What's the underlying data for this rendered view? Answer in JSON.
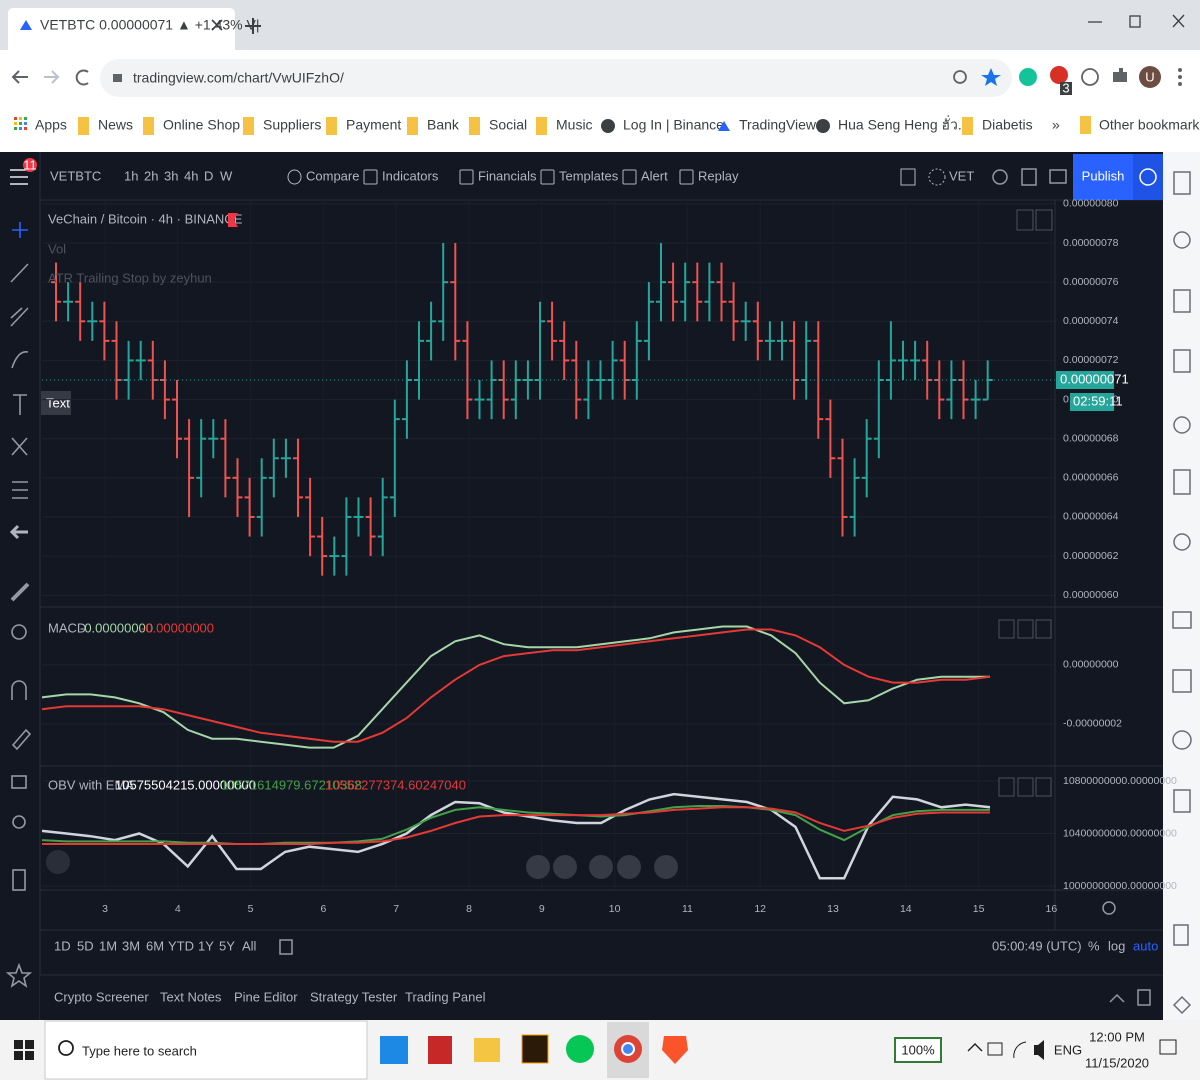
{
  "browser": {
    "tab_title": "VETBTC 0.00000071 ▲ +1.43% V|",
    "url": "tradingview.com/chart/VwUIFzhO/",
    "extension_badge": "3",
    "profile": "U",
    "bookmarks": [
      "Apps",
      "News",
      "Online Shop",
      "Suppliers",
      "Payment",
      "Bank",
      "Social",
      "Music",
      "Log In | Binance",
      "TradingView",
      "Hua Seng Heng ฮั่ว...",
      "Diabetis"
    ],
    "more": "»",
    "other_bookmarks": "Other bookmarks"
  },
  "toolbar": {
    "notifications": "11",
    "symbol": "VETBTC",
    "intervals": [
      "1h",
      "2h",
      "3h",
      "4h",
      "D",
      "W"
    ],
    "buttons": [
      "Compare",
      "Indicators",
      "Financials",
      "Templates",
      "Alert",
      "Replay"
    ],
    "currency": "VET",
    "publish": "Publish"
  },
  "chart": {
    "title": "VeChain / Bitcoin · 4h · BINANCE",
    "indicators": [
      "Vol",
      "ATR Trailing Stop by zeyhun"
    ],
    "tooltip": "Text",
    "last_price_label": "0.00000071",
    "countdown": "02:59:11",
    "ylim": [
      5.95e-07,
      8.02e-07
    ],
    "yticks": [
      {
        "value": 6e-07,
        "label": "0.00000060"
      },
      {
        "value": 6.2e-07,
        "label": "0.00000062"
      },
      {
        "value": 6.4e-07,
        "label": "0.00000064"
      },
      {
        "value": 6.6e-07,
        "label": "0.00000066"
      },
      {
        "value": 6.8e-07,
        "label": "0.00000068"
      },
      {
        "value": 7e-07,
        "label": "0.00000070"
      },
      {
        "value": 7.2e-07,
        "label": "0.00000072"
      },
      {
        "value": 7.4e-07,
        "label": "0.00000074"
      },
      {
        "value": 7.6e-07,
        "label": "0.00000076"
      },
      {
        "value": 7.8e-07,
        "label": "0.00000078"
      },
      {
        "value": 8e-07,
        "label": "0.00000080"
      }
    ],
    "up_color": "#26a69a",
    "down_color": "#ef5350",
    "open": [
      7.6e-07,
      7.5e-07,
      7.5e-07,
      7.4e-07,
      7.4e-07,
      7.3e-07,
      7.1e-07,
      7.2e-07,
      7.2e-07,
      7.1e-07,
      7e-07,
      6.8e-07,
      6.6e-07,
      6.8e-07,
      6.8e-07,
      6.6e-07,
      6.5e-07,
      6.4e-07,
      6.6e-07,
      6.7e-07,
      6.7e-07,
      6.5e-07,
      6.3e-07,
      6.2e-07,
      6.2e-07,
      6.4e-07,
      6.4e-07,
      6.3e-07,
      6.5e-07,
      6.9e-07,
      7.1e-07,
      7.3e-07,
      7.4e-07,
      7.6e-07,
      7.3e-07,
      7e-07,
      7e-07,
      7.1e-07,
      7e-07,
      7.1e-07,
      7.1e-07,
      7.4e-07,
      7.3e-07,
      7.2e-07,
      7e-07,
      7.1e-07,
      7.1e-07,
      7.2e-07,
      7.1e-07,
      7.3e-07,
      7.5e-07,
      7.6e-07,
      7.5e-07,
      7.6e-07,
      7.5e-07,
      7.6e-07,
      7.5e-07,
      7.4e-07,
      7.4e-07,
      7.3e-07,
      7.3e-07,
      7.3e-07,
      7.1e-07,
      7.3e-07,
      6.9e-07,
      6.7e-07,
      6.4e-07,
      6.6e-07,
      6.8e-07,
      7.1e-07,
      7.2e-07,
      7.2e-07,
      7.2e-07,
      7.1e-07,
      7e-07,
      7.1e-07,
      7e-07,
      7e-07
    ],
    "high": [
      7.7e-07,
      7.6e-07,
      7.6e-07,
      7.5e-07,
      7.5e-07,
      7.4e-07,
      7.3e-07,
      7.3e-07,
      7.3e-07,
      7.2e-07,
      7.1e-07,
      6.9e-07,
      6.9e-07,
      6.9e-07,
      6.9e-07,
      6.7e-07,
      6.6e-07,
      6.7e-07,
      6.8e-07,
      6.8e-07,
      6.8e-07,
      6.6e-07,
      6.4e-07,
      6.3e-07,
      6.5e-07,
      6.5e-07,
      6.5e-07,
      6.6e-07,
      7e-07,
      7.2e-07,
      7.4e-07,
      7.5e-07,
      7.8e-07,
      7.8e-07,
      7.4e-07,
      7.1e-07,
      7.2e-07,
      7.2e-07,
      7.2e-07,
      7.2e-07,
      7.5e-07,
      7.5e-07,
      7.4e-07,
      7.3e-07,
      7.2e-07,
      7.2e-07,
      7.3e-07,
      7.3e-07,
      7.4e-07,
      7.6e-07,
      7.8e-07,
      7.7e-07,
      7.7e-07,
      7.7e-07,
      7.7e-07,
      7.7e-07,
      7.6e-07,
      7.5e-07,
      7.5e-07,
      7.4e-07,
      7.4e-07,
      7.4e-07,
      7.4e-07,
      7.4e-07,
      7e-07,
      6.8e-07,
      6.7e-07,
      6.9e-07,
      7.2e-07,
      7.4e-07,
      7.3e-07,
      7.3e-07,
      7.3e-07,
      7.2e-07,
      7.2e-07,
      7.2e-07,
      7.1e-07,
      7.2e-07
    ],
    "low": [
      7.4e-07,
      7.4e-07,
      7.3e-07,
      7.3e-07,
      7.2e-07,
      7e-07,
      7e-07,
      7.1e-07,
      7e-07,
      6.9e-07,
      6.7e-07,
      6.4e-07,
      6.5e-07,
      6.7e-07,
      6.5e-07,
      6.4e-07,
      6.3e-07,
      6.3e-07,
      6.5e-07,
      6.6e-07,
      6.4e-07,
      6.2e-07,
      6.1e-07,
      6.1e-07,
      6.1e-07,
      6.3e-07,
      6.2e-07,
      6.2e-07,
      6.4e-07,
      6.8e-07,
      7e-07,
      7.2e-07,
      7.3e-07,
      7.2e-07,
      6.9e-07,
      6.9e-07,
      6.9e-07,
      6.9e-07,
      6.9e-07,
      7e-07,
      7e-07,
      7.2e-07,
      7.1e-07,
      6.9e-07,
      6.9e-07,
      7e-07,
      7e-07,
      7e-07,
      7e-07,
      7.2e-07,
      7.4e-07,
      7.4e-07,
      7.4e-07,
      7.4e-07,
      7.4e-07,
      7.4e-07,
      7.3e-07,
      7.3e-07,
      7.2e-07,
      7.2e-07,
      7.2e-07,
      7e-07,
      7e-07,
      6.8e-07,
      6.6e-07,
      6.3e-07,
      6.3e-07,
      6.5e-07,
      6.7e-07,
      7e-07,
      7.1e-07,
      7.1e-07,
      7e-07,
      6.9e-07,
      6.9e-07,
      6.9e-07,
      6.9e-07,
      7e-07
    ],
    "close": [
      7.5e-07,
      7.5e-07,
      7.4e-07,
      7.4e-07,
      7.3e-07,
      7.1e-07,
      7.2e-07,
      7.2e-07,
      7.1e-07,
      7e-07,
      6.8e-07,
      6.6e-07,
      6.8e-07,
      6.8e-07,
      6.6e-07,
      6.5e-07,
      6.4e-07,
      6.6e-07,
      6.7e-07,
      6.7e-07,
      6.5e-07,
      6.3e-07,
      6.2e-07,
      6.2e-07,
      6.4e-07,
      6.4e-07,
      6.3e-07,
      6.5e-07,
      6.9e-07,
      7.1e-07,
      7.3e-07,
      7.4e-07,
      7.6e-07,
      7.3e-07,
      7e-07,
      7e-07,
      7.1e-07,
      7e-07,
      7.1e-07,
      7.1e-07,
      7.4e-07,
      7.3e-07,
      7.2e-07,
      7e-07,
      7.1e-07,
      7.1e-07,
      7.2e-07,
      7.1e-07,
      7.3e-07,
      7.5e-07,
      7.6e-07,
      7.5e-07,
      7.6e-07,
      7.5e-07,
      7.6e-07,
      7.5e-07,
      7.4e-07,
      7.4e-07,
      7.3e-07,
      7.3e-07,
      7.3e-07,
      7.1e-07,
      7.3e-07,
      6.9e-07,
      6.7e-07,
      6.4e-07,
      6.6e-07,
      6.8e-07,
      7.1e-07,
      7.2e-07,
      7.2e-07,
      7.2e-07,
      7.1e-07,
      7e-07,
      7.1e-07,
      7e-07,
      7e-07,
      7.1e-07
    ],
    "macd": {
      "name": "MACD",
      "value_labels": [
        "-0.00000000",
        "-0.00000000"
      ],
      "ylim": [
        -3.39e-08,
        1.86e-08
      ],
      "yticks": [
        {
          "value": 0,
          "label": "0.00000000"
        },
        {
          "value": -2e-08,
          "label": "-0.00000002"
        }
      ],
      "series": [
        {
          "color": "#a5d6a7",
          "values": [
            -1.1e-08,
            -1e-08,
            -1e-08,
            -1.1e-08,
            -1.3e-08,
            -1.6e-08,
            -2.2e-08,
            -2.5e-08,
            -2.5e-08,
            -2.6e-08,
            -2.7e-08,
            -2.8e-08,
            -2.8e-08,
            -2.4e-08,
            -1.5e-08,
            -6e-09,
            3e-09,
            8e-09,
            1e-08,
            7e-09,
            6e-09,
            6e-09,
            6e-09,
            7e-09,
            8e-09,
            9e-09,
            1.1e-08,
            1.2e-08,
            1.3e-08,
            1.3e-08,
            1e-08,
            4e-09,
            -6e-09,
            -1.3e-08,
            -1.2e-08,
            -8e-09,
            -5e-09,
            -4e-09,
            -4e-09,
            -4e-09
          ]
        },
        {
          "color": "#e53935",
          "values": [
            -1.5e-08,
            -1.4e-08,
            -1.4e-08,
            -1.4e-08,
            -1.4e-08,
            -1.5e-08,
            -1.7e-08,
            -1.9e-08,
            -2.1e-08,
            -2.3e-08,
            -2.4e-08,
            -2.5e-08,
            -2.6e-08,
            -2.6e-08,
            -2.3e-08,
            -1.8e-08,
            -1.1e-08,
            -5e-09,
            0,
            3e-09,
            4e-09,
            5e-09,
            5e-09,
            6e-09,
            7e-09,
            8e-09,
            9e-09,
            1e-08,
            1.1e-08,
            1.2e-08,
            1.2e-08,
            1e-08,
            6e-09,
            0,
            -4e-09,
            -6e-09,
            -6e-09,
            -5e-09,
            -5e-09,
            -4e-09
          ]
        }
      ]
    },
    "obv": {
      "name": "OBV with EMA",
      "value_labels": [
        "10575504215.00000000",
        "10571614979.67210368",
        "10552277374.60247040"
      ],
      "ylim": [
        9970000000,
        10899000000
      ],
      "yticks": [
        {
          "value": 10000000000,
          "label": "10000000000.00000000"
        },
        {
          "value": 10400000000,
          "label": "10400000000.00000000"
        },
        {
          "value": 10800000000,
          "label": "10800000000.00000000"
        }
      ],
      "series": [
        {
          "color": "#d1d4dc",
          "values": [
            10420000000,
            10400000000,
            10380000000,
            10350000000,
            10400000000,
            10320000000,
            10150000000,
            10380000000,
            10130000000,
            10130000000,
            10260000000,
            10300000000,
            10280000000,
            10260000000,
            10320000000,
            10400000000,
            10540000000,
            10640000000,
            10630000000,
            10560000000,
            10530000000,
            10500000000,
            10480000000,
            10480000000,
            10580000000,
            10660000000,
            10700000000,
            10680000000,
            10660000000,
            10640000000,
            10580000000,
            10450000000,
            10060000000,
            10060000000,
            10460000000,
            10680000000,
            10660000000,
            10600000000,
            10620000000,
            10600000000
          ]
        },
        {
          "color": "#43a047",
          "values": [
            10350000000,
            10340000000,
            10340000000,
            10340000000,
            10340000000,
            10340000000,
            10330000000,
            10330000000,
            10320000000,
            10320000000,
            10330000000,
            10330000000,
            10330000000,
            10340000000,
            10360000000,
            10430000000,
            10520000000,
            10580000000,
            10600000000,
            10580000000,
            10560000000,
            10550000000,
            10540000000,
            10530000000,
            10540000000,
            10570000000,
            10600000000,
            10610000000,
            10610000000,
            10600000000,
            10580000000,
            10540000000,
            10430000000,
            10350000000,
            10450000000,
            10540000000,
            10570000000,
            10580000000,
            10580000000,
            10580000000
          ]
        },
        {
          "color": "#e53935",
          "values": [
            10320000000,
            10320000000,
            10320000000,
            10320000000,
            10320000000,
            10320000000,
            10320000000,
            10320000000,
            10320000000,
            10320000000,
            10320000000,
            10320000000,
            10330000000,
            10330000000,
            10340000000,
            10370000000,
            10420000000,
            10480000000,
            10530000000,
            10540000000,
            10540000000,
            10540000000,
            10540000000,
            10540000000,
            10550000000,
            10560000000,
            10580000000,
            10590000000,
            10600000000,
            10600000000,
            10590000000,
            10560000000,
            10480000000,
            10420000000,
            10460000000,
            10520000000,
            10550000000,
            10560000000,
            10560000000,
            10560000000
          ]
        }
      ]
    },
    "xlabels": [
      "3",
      "4",
      "5",
      "6",
      "7",
      "8",
      "9",
      "10",
      "11",
      "12",
      "13",
      "14",
      "15",
      "16"
    ]
  },
  "bottom_bar": {
    "ranges": [
      "1D",
      "5D",
      "1M",
      "3M",
      "6M",
      "YTD",
      "1Y",
      "5Y",
      "All"
    ],
    "time": "05:00:49 (UTC)",
    "percent": "%",
    "log": "log",
    "auto": "auto"
  },
  "panels": [
    "Crypto Screener",
    "Text Notes",
    "Pine Editor",
    "Strategy Tester",
    "Trading Panel"
  ],
  "taskbar": {
    "search": "Type here to search",
    "battery": "100%",
    "language": "ENG",
    "time": "12:00 PM",
    "date": "11/15/2020"
  }
}
